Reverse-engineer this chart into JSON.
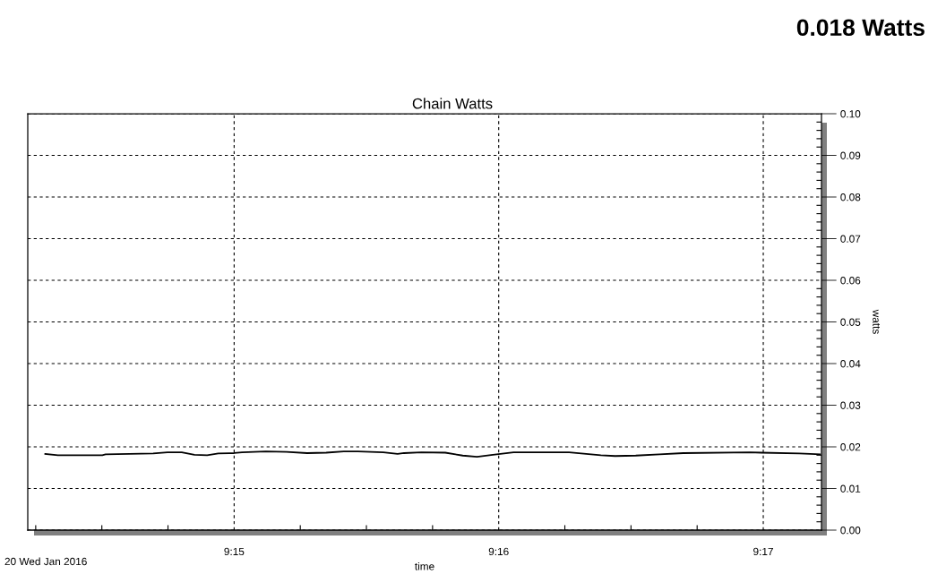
{
  "chart_data": {
    "type": "line",
    "title": "Chain Watts",
    "xlabel": "time",
    "ylabel": "watts",
    "annotations": [
      "0.018 Watts",
      "20 Wed Jan 2016"
    ],
    "x": [
      9.2381,
      9.2389,
      9.2417,
      9.2419,
      9.2449,
      9.2458,
      9.2467,
      9.2475,
      9.2483,
      9.249,
      9.25,
      9.2505,
      9.252,
      9.2533,
      9.2546,
      9.2558,
      9.2569,
      9.2578,
      9.2594,
      9.2603,
      9.2607,
      9.2618,
      9.2633,
      9.2644,
      9.2653,
      9.2663,
      9.2676,
      9.2711,
      9.2731,
      9.274,
      9.2753,
      9.2768,
      9.2783,
      9.2825,
      9.2832,
      9.2856,
      9.2869
    ],
    "series": [
      {
        "color": "#000000",
        "values": [
          0.0183,
          0.018,
          0.018,
          0.0182,
          0.0184,
          0.0187,
          0.0187,
          0.0181,
          0.018,
          0.0184,
          0.0185,
          0.0187,
          0.0189,
          0.0188,
          0.0185,
          0.0186,
          0.0189,
          0.0189,
          0.0187,
          0.0183,
          0.0185,
          0.0187,
          0.0186,
          0.0179,
          0.0176,
          0.0181,
          0.0187,
          0.0187,
          0.018,
          0.0178,
          0.0179,
          0.0182,
          0.0185,
          0.0187,
          0.0186,
          0.0184,
          0.0182
        ]
      }
    ],
    "xlim": [
      9.237,
      9.287
    ],
    "ylim": [
      0,
      0.1
    ],
    "xticks": [
      {
        "value": 9.2375,
        "label": null
      },
      {
        "value": 9.241667,
        "label": null
      },
      {
        "value": 9.245833,
        "label": null
      },
      {
        "value": 9.25,
        "label": "9:15"
      },
      {
        "value": 9.254167,
        "label": null
      },
      {
        "value": 9.258333,
        "label": null
      },
      {
        "value": 9.2625,
        "label": null
      },
      {
        "value": 9.266667,
        "label": "9:16"
      },
      {
        "value": 9.270833,
        "label": null
      },
      {
        "value": 9.275,
        "label": null
      },
      {
        "value": 9.279167,
        "label": null
      },
      {
        "value": 9.283333,
        "label": "9:17"
      }
    ],
    "yticks": [
      {
        "value": 0,
        "label": "0.00"
      },
      {
        "value": 0.002,
        "label": null
      },
      {
        "value": 0.004,
        "label": null
      },
      {
        "value": 0.006,
        "label": null
      },
      {
        "value": 0.008,
        "label": null
      },
      {
        "value": 0.01,
        "label": "0.01"
      },
      {
        "value": 0.012,
        "label": null
      },
      {
        "value": 0.014,
        "label": null
      },
      {
        "value": 0.016,
        "label": null
      },
      {
        "value": 0.018,
        "label": null
      },
      {
        "value": 0.02,
        "label": "0.02"
      },
      {
        "value": 0.022,
        "label": null
      },
      {
        "value": 0.024,
        "label": null
      },
      {
        "value": 0.026,
        "label": null
      },
      {
        "value": 0.028,
        "label": null
      },
      {
        "value": 0.03,
        "label": "0.03"
      },
      {
        "value": 0.032,
        "label": null
      },
      {
        "value": 0.034,
        "label": null
      },
      {
        "value": 0.036,
        "label": null
      },
      {
        "value": 0.038,
        "label": null
      },
      {
        "value": 0.04,
        "label": "0.04"
      },
      {
        "value": 0.042,
        "label": null
      },
      {
        "value": 0.044,
        "label": null
      },
      {
        "value": 0.046,
        "label": null
      },
      {
        "value": 0.048,
        "label": null
      },
      {
        "value": 0.05,
        "label": "0.05"
      },
      {
        "value": 0.052,
        "label": null
      },
      {
        "value": 0.054,
        "label": null
      },
      {
        "value": 0.056,
        "label": null
      },
      {
        "value": 0.058,
        "label": null
      },
      {
        "value": 0.06,
        "label": "0.06"
      },
      {
        "value": 0.062,
        "label": null
      },
      {
        "value": 0.064,
        "label": null
      },
      {
        "value": 0.066,
        "label": null
      },
      {
        "value": 0.068,
        "label": null
      },
      {
        "value": 0.07,
        "label": "0.07"
      },
      {
        "value": 0.072,
        "label": null
      },
      {
        "value": 0.074,
        "label": null
      },
      {
        "value": 0.076,
        "label": null
      },
      {
        "value": 0.078,
        "label": null
      },
      {
        "value": 0.08,
        "label": "0.08"
      },
      {
        "value": 0.082,
        "label": null
      },
      {
        "value": 0.084,
        "label": null
      },
      {
        "value": 0.086,
        "label": null
      },
      {
        "value": 0.088,
        "label": null
      },
      {
        "value": 0.09,
        "label": "0.09"
      },
      {
        "value": 0.092,
        "label": null
      },
      {
        "value": 0.094,
        "label": null
      },
      {
        "value": 0.096,
        "label": null
      },
      {
        "value": 0.098,
        "label": null
      },
      {
        "value": 0.1,
        "label": "0.10"
      }
    ],
    "grid": true
  }
}
